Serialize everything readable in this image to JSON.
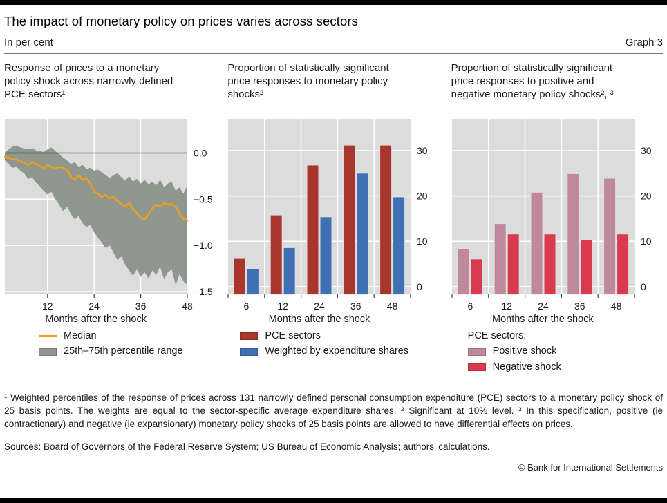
{
  "header": {
    "title": "The impact of monetary policy on prices varies across sectors",
    "units_label": "In per cent",
    "graph_label": "Graph 3"
  },
  "panels": [
    {
      "title": "Response of prices to a monetary\npolicy shock across narrowly defined\nPCE sectors¹",
      "xlabel": "Months after the shock",
      "legend": [
        {
          "label": "Median",
          "type": "line"
        },
        {
          "label": "25th–75th percentile range",
          "type": "band"
        }
      ]
    },
    {
      "title": "Proportion of statistically significant\nprice responses to monetary policy\nshocks²",
      "xlabel": "Months after the shock",
      "legend": [
        {
          "label": "PCE sectors",
          "type": "bar"
        },
        {
          "label": "Weighted by expenditure shares",
          "type": "bar"
        }
      ]
    },
    {
      "title": "Proportion of statistically significant\nprice responses to positive and\nnegative monetary policy shocks², ³",
      "xlabel": "Months after the shock",
      "legend_title": "PCE sectors:",
      "legend": [
        {
          "label": "Positive shock",
          "type": "bar"
        },
        {
          "label": "Negative shock",
          "type": "bar"
        }
      ]
    }
  ],
  "chart_data": [
    {
      "type": "line",
      "title": "Response of prices to a monetary policy shock across narrowly defined PCE sectors",
      "xlabel": "Months after the shock",
      "ylabel": "Per cent",
      "ylim": [
        -1.53,
        0.37
      ],
      "yticks": [
        {
          "v": 0,
          "label": "0.0"
        },
        {
          "v": -0.5,
          "label": "−0.5"
        },
        {
          "v": -1.0,
          "label": "−1.0"
        },
        {
          "v": -1.5,
          "label": "−1.5"
        }
      ],
      "xticks": [
        {
          "v": 12,
          "label": "12"
        },
        {
          "v": 24,
          "label": "24"
        },
        {
          "v": 36,
          "label": "36"
        },
        {
          "v": 48,
          "label": "48"
        }
      ],
      "zero_line": true,
      "grid": true,
      "legend_position": "below",
      "x": [
        1,
        2,
        3,
        4,
        5,
        6,
        7,
        8,
        9,
        10,
        11,
        12,
        13,
        14,
        15,
        16,
        17,
        18,
        19,
        20,
        21,
        22,
        23,
        24,
        25,
        26,
        27,
        28,
        29,
        30,
        31,
        32,
        33,
        34,
        35,
        36,
        37,
        38,
        39,
        40,
        41,
        42,
        43,
        44,
        45,
        46,
        47,
        48
      ],
      "series": [
        {
          "name": "Median",
          "color": "#F09C1E",
          "values": [
            -0.04,
            -0.05,
            -0.07,
            -0.07,
            -0.09,
            -0.11,
            -0.13,
            -0.1,
            -0.12,
            -0.14,
            -0.16,
            -0.13,
            -0.15,
            -0.17,
            -0.15,
            -0.16,
            -0.18,
            -0.26,
            -0.29,
            -0.24,
            -0.29,
            -0.27,
            -0.33,
            -0.42,
            -0.44,
            -0.48,
            -0.45,
            -0.49,
            -0.47,
            -0.52,
            -0.55,
            -0.58,
            -0.54,
            -0.6,
            -0.65,
            -0.7,
            -0.72,
            -0.66,
            -0.6,
            -0.56,
            -0.58,
            -0.54,
            -0.56,
            -0.55,
            -0.58,
            -0.66,
            -0.71,
            -0.73
          ]
        },
        {
          "name": "75th percentile",
          "color": "#8E988E",
          "values": [
            0.0,
            0.04,
            0.07,
            0.08,
            0.06,
            0.05,
            0.04,
            0.05,
            0.03,
            0.02,
            0.01,
            0.04,
            0.06,
            0.02,
            -0.01,
            -0.05,
            -0.08,
            -0.12,
            -0.1,
            -0.15,
            -0.13,
            -0.17,
            -0.16,
            -0.19,
            -0.18,
            -0.21,
            -0.24,
            -0.27,
            -0.24,
            -0.22,
            -0.26,
            -0.3,
            -0.25,
            -0.31,
            -0.28,
            -0.33,
            -0.29,
            -0.34,
            -0.31,
            -0.35,
            -0.29,
            -0.37,
            -0.33,
            -0.31,
            -0.41,
            -0.37,
            -0.44,
            -0.35
          ]
        },
        {
          "name": "25th percentile",
          "color": "#8E988E",
          "values": [
            -0.08,
            -0.12,
            -0.16,
            -0.15,
            -0.19,
            -0.22,
            -0.28,
            -0.26,
            -0.32,
            -0.36,
            -0.41,
            -0.45,
            -0.42,
            -0.5,
            -0.56,
            -0.63,
            -0.58,
            -0.66,
            -0.72,
            -0.68,
            -0.76,
            -0.8,
            -0.78,
            -0.86,
            -0.92,
            -0.97,
            -1.03,
            -1.0,
            -1.08,
            -1.16,
            -1.12,
            -1.21,
            -1.27,
            -1.33,
            -1.26,
            -1.34,
            -1.29,
            -1.36,
            -1.27,
            -1.32,
            -1.23,
            -1.37,
            -1.29,
            -1.26,
            -1.43,
            -1.31,
            -1.39,
            -1.43
          ]
        }
      ],
      "band": {
        "upper": "75th percentile",
        "lower": "25th percentile",
        "fill": "#8E988E"
      }
    },
    {
      "type": "bar",
      "title": "Proportion of statistically significant price responses to monetary policy shocks",
      "xlabel": "Months after the shock",
      "categories": [
        "6",
        "12",
        "24",
        "36",
        "48"
      ],
      "ylim": [
        -1.7,
        37
      ],
      "yticks": [
        {
          "v": 0,
          "label": "0"
        },
        {
          "v": 10,
          "label": "10"
        },
        {
          "v": 20,
          "label": "20"
        },
        {
          "v": 30,
          "label": "30"
        }
      ],
      "grid": true,
      "legend_position": "below",
      "series": [
        {
          "name": "PCE sectors",
          "color": "#A8362C",
          "values": [
            6.2,
            15.8,
            26.8,
            31.2,
            31.2
          ]
        },
        {
          "name": "Weighted by expenditure shares",
          "color": "#3F6FB5",
          "values": [
            3.9,
            8.6,
            15.4,
            25.0,
            19.8
          ]
        }
      ]
    },
    {
      "type": "bar",
      "title": "Proportion of statistically significant price responses to positive and negative monetary policy shocks",
      "xlabel": "Months after the shock",
      "categories": [
        "6",
        "12",
        "24",
        "36",
        "48"
      ],
      "ylim": [
        -1.7,
        37
      ],
      "yticks": [
        {
          "v": 0,
          "label": "0"
        },
        {
          "v": 10,
          "label": "10"
        },
        {
          "v": 20,
          "label": "20"
        },
        {
          "v": 30,
          "label": "30"
        }
      ],
      "grid": true,
      "legend_position": "below",
      "series": [
        {
          "name": "Positive shock",
          "color": "#C0889C",
          "values": [
            8.4,
            13.9,
            20.8,
            24.9,
            23.9
          ]
        },
        {
          "name": "Negative shock",
          "color": "#D93A4F",
          "values": [
            6.1,
            11.6,
            11.6,
            10.3,
            11.6
          ]
        }
      ]
    }
  ],
  "footnotes": "¹  Weighted percentiles of the response of prices across 131 narrowly defined personal consumption expenditure (PCE) sectors to a monetary policy shock of 25 basis points. The weights are equal to the sector-specific average expenditure shares.   ²  Significant at 10% level.   ³  In this specification, positive (ie contractionary) and negative (ie expansionary) monetary policy shocks of 25 basis points are allowed to have differential effects on prices.",
  "sources": "Sources: Board of Governors of the Federal Reserve System; US Bureau of Economic Analysis; authors’ calculations.",
  "copyright": "© Bank for International Settlements",
  "colors": {
    "plot_bg": "#DCDCDC",
    "gridline": "#FFFFFF",
    "median_orange": "#F09C1E",
    "percentile_band": "#8E988E",
    "pce_red": "#A8362C",
    "weighted_blue": "#3F6FB5",
    "positive_pink": "#C0889C",
    "negative_red": "#D93A4F",
    "text": "#1A1A1A",
    "rule_bar": "#000000"
  }
}
